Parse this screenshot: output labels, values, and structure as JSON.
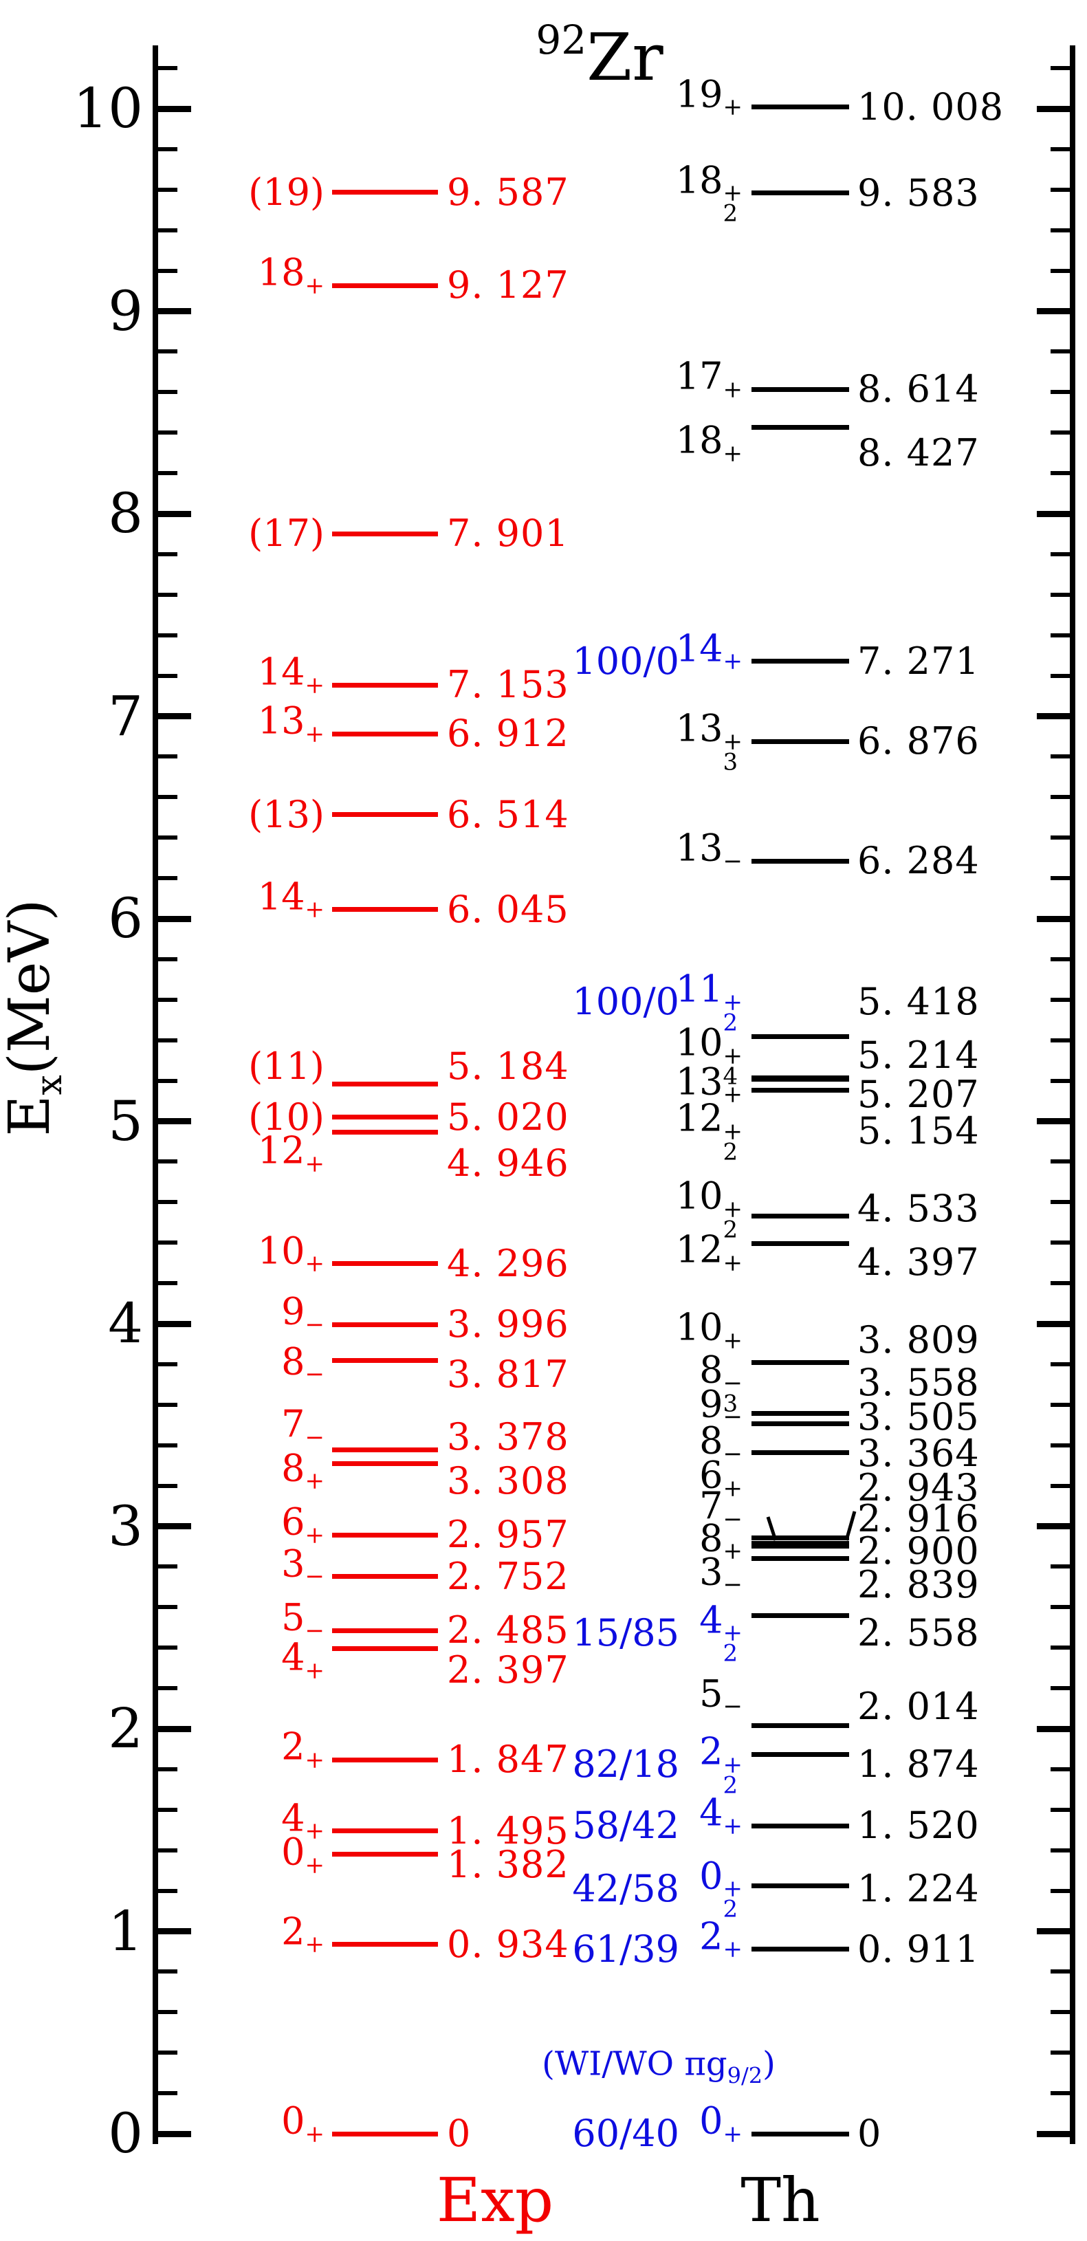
{
  "title": {
    "mass_number": "92",
    "element_symbol": "Zr"
  },
  "y_axis": {
    "symbol": "E",
    "subscript": "x",
    "unit": "(MeV)",
    "min": 0,
    "max": 10,
    "major_step": 1,
    "minor_step": 0.2,
    "major_tick_labels": [
      "0",
      "1",
      "2",
      "3",
      "4",
      "5",
      "6",
      "7",
      "8",
      "9",
      "10"
    ]
  },
  "columns": {
    "exp": {
      "footer_label": "Exp",
      "color": "#f20000"
    },
    "th": {
      "footer_label": "Th",
      "color": "#000000",
      "ratio_color": "#0d0de0",
      "ratio_caption": {
        "pre": "(WI/WO πg",
        "sub": "9/2",
        "post": ")"
      }
    }
  },
  "chart_data": {
    "type": "table",
    "subtype": "nuclear-energy-level-scheme",
    "title": "92Zr",
    "ylabel": "Ex (MeV)",
    "ylim": [
      0,
      10.4
    ],
    "annotation": "(WI/WO πg9/2)",
    "series": [
      {
        "name": "Exp",
        "color": "#f20000",
        "levels": [
          {
            "spin": "(19)",
            "sup": "",
            "sub": "",
            "energy": 9.587,
            "label": "9.587",
            "dy": 0
          },
          {
            "spin": "18",
            "sup": "+",
            "sub": "",
            "energy": 9.127,
            "label": "9.127",
            "dy": 0
          },
          {
            "spin": "(17)",
            "sup": "",
            "sub": "",
            "energy": 7.901,
            "label": "7.901",
            "dy": 0
          },
          {
            "spin": "14",
            "sup": "+",
            "sub": "",
            "energy": 7.153,
            "label": "7.153",
            "dy": 0
          },
          {
            "spin": "13",
            "sup": "+",
            "sub": "",
            "energy": 6.912,
            "label": "6.912",
            "dy": 0
          },
          {
            "spin": "(13)",
            "sup": "",
            "sub": "",
            "energy": 6.514,
            "label": "6.514",
            "dy": 0
          },
          {
            "spin": "14",
            "sup": "+",
            "sub": "",
            "energy": 6.045,
            "label": "6.045",
            "dy": 0
          },
          {
            "spin": "(11)",
            "sup": "",
            "sub": "",
            "energy": 5.184,
            "label": "5.184",
            "dy": -25
          },
          {
            "spin": "(10)",
            "sup": "",
            "sub": "",
            "energy": 5.02,
            "label": "5.020",
            "dy": 0
          },
          {
            "spin": "12",
            "sup": "+",
            "sub": "",
            "energy": 4.946,
            "label": "4.946",
            "dy": 46
          },
          {
            "spin": "10",
            "sup": "+",
            "sub": "",
            "energy": 4.296,
            "label": "4.296",
            "dy": 0
          },
          {
            "spin": "9",
            "sup": "−",
            "sub": "",
            "energy": 3.996,
            "label": "3.996",
            "dy": 0
          },
          {
            "spin": "8",
            "sup": "−",
            "sub": "",
            "energy": 3.817,
            "label": "3.817",
            "dy": 20
          },
          {
            "spin": "7",
            "sup": "−",
            "sub": "",
            "energy": 3.378,
            "label": "3.378",
            "dy": -18
          },
          {
            "spin": "8",
            "sup": "+",
            "sub": "",
            "energy": 3.308,
            "label": "3.308",
            "dy": 25
          },
          {
            "spin": "6",
            "sup": "+",
            "sub": "",
            "energy": 2.957,
            "label": "2.957",
            "dy": 0
          },
          {
            "spin": "3",
            "sup": "−",
            "sub": "",
            "energy": 2.752,
            "label": "2.752",
            "dy": 0
          },
          {
            "spin": "5",
            "sup": "−",
            "sub": "",
            "energy": 2.485,
            "label": "2.485",
            "dy": 0
          },
          {
            "spin": "4",
            "sup": "+",
            "sub": "",
            "energy": 2.397,
            "label": "2.397",
            "dy": 32
          },
          {
            "spin": "2",
            "sup": "+",
            "sub": "",
            "energy": 1.847,
            "label": "1.847",
            "dy": 0
          },
          {
            "spin": "4",
            "sup": "+",
            "sub": "",
            "energy": 1.495,
            "label": "1.495",
            "dy": 0
          },
          {
            "spin": "0",
            "sup": "+",
            "sub": "",
            "energy": 1.382,
            "label": "1.382",
            "dy": 16
          },
          {
            "spin": "2",
            "sup": "+",
            "sub": "",
            "energy": 0.934,
            "label": "0.934",
            "dy": 0
          },
          {
            "spin": "0",
            "sup": "+",
            "sub": "",
            "energy": 0,
            "label": "0",
            "dy": 0
          }
        ]
      },
      {
        "name": "Th",
        "color": "#000000",
        "levels": [
          {
            "ratio": "",
            "spin": "19",
            "sup": "+",
            "sub": "",
            "energy": 10.008,
            "label": "10.008",
            "dy": 0
          },
          {
            "ratio": "",
            "spin": "18",
            "sup": "+",
            "sub": "2",
            "energy": 9.583,
            "label": "9.583",
            "dy": 0
          },
          {
            "ratio": "",
            "spin": "17",
            "sup": "+",
            "sub": "",
            "energy": 8.614,
            "label": "8.614",
            "dy": 0
          },
          {
            "ratio": "",
            "spin": "18",
            "sup": "+",
            "sub": "",
            "energy": 8.427,
            "label": "8.427",
            "dy": 38
          },
          {
            "ratio": "100/0",
            "spin": "14",
            "sup": "+",
            "sub": "",
            "energy": 7.271,
            "label": "7.271",
            "dy": 0
          },
          {
            "ratio": "",
            "spin": "13",
            "sup": "+",
            "sub": "3",
            "energy": 6.876,
            "label": "6.876",
            "dy": 0
          },
          {
            "ratio": "",
            "spin": "13",
            "sup": "−",
            "sub": "",
            "energy": 6.284,
            "label": "6.284",
            "dy": 0
          },
          {
            "ratio": "100/0",
            "spin": "11",
            "sup": "+",
            "sub": "2",
            "energy": 5.418,
            "label": "5.418",
            "dy": -50
          },
          {
            "ratio": "",
            "spin": "10",
            "sup": "+",
            "sub": "4",
            "energy": 5.214,
            "label": "5.214",
            "dy": -32
          },
          {
            "ratio": "",
            "spin": "13",
            "sup": "+",
            "sub": "",
            "energy": 5.207,
            "label": "5.207",
            "dy": 22
          },
          {
            "ratio": "",
            "spin": "12",
            "sup": "+",
            "sub": "2",
            "energy": 5.154,
            "label": "5.154",
            "dy": 60
          },
          {
            "ratio": "",
            "spin": "10",
            "sup": "+",
            "sub": "2",
            "energy": 4.533,
            "label": "4.533",
            "dy": -10
          },
          {
            "ratio": "",
            "spin": "12",
            "sup": "+",
            "sub": "",
            "energy": 4.397,
            "label": "4.397",
            "dy": 28
          },
          {
            "ratio": "",
            "spin": "10",
            "sup": "+",
            "sub": "",
            "energy": 3.809,
            "label": "3.809",
            "dy": -32
          },
          {
            "ratio": "",
            "spin": "8",
            "sup": "−",
            "sub": "3",
            "energy": 3.558,
            "label": "3.558",
            "dy": -44
          },
          {
            "ratio": "",
            "spin": "9",
            "sup": "−",
            "sub": "",
            "energy": 3.505,
            "label": "3.505",
            "dy": -10
          },
          {
            "ratio": "",
            "spin": "8",
            "sup": "−",
            "sub": "",
            "energy": 3.364,
            "label": "3.364",
            "dy": 2
          },
          {
            "ratio": "",
            "spin": "6",
            "sup": "+",
            "sub": "",
            "energy": 2.943,
            "label": "2.943",
            "dy": -72
          },
          {
            "ratio": "",
            "spin": "7",
            "sup": "−",
            "sub": "",
            "energy": 2.916,
            "label": "2.916",
            "dy": -35
          },
          {
            "ratio": "",
            "spin": "8",
            "sup": "+",
            "sub": "",
            "energy": 2.9,
            "label": "2.900",
            "dy": 7
          },
          {
            "ratio": "",
            "spin": "3",
            "sup": "−",
            "sub": "",
            "energy": 2.839,
            "label": "2.839",
            "dy": 38
          },
          {
            "ratio": "15/85",
            "spin": "4",
            "sup": "+",
            "sub": "2",
            "energy": 2.558,
            "label": "2.558",
            "dy": 25
          },
          {
            "ratio": "",
            "spin": "5",
            "sup": "−",
            "sub": "",
            "energy": 2.014,
            "label": "2.014",
            "dy": -28
          },
          {
            "ratio": "82/18",
            "spin": "2",
            "sup": "+",
            "sub": "2",
            "energy": 1.874,
            "label": "1.874",
            "dy": 15
          },
          {
            "ratio": "58/42",
            "spin": "4",
            "sup": "+",
            "sub": "",
            "energy": 1.52,
            "label": "1.520",
            "dy": 0
          },
          {
            "ratio": "42/58",
            "spin": "0",
            "sup": "+",
            "sub": "2",
            "energy": 1.224,
            "label": "1.224",
            "dy": 4
          },
          {
            "ratio": "61/39",
            "spin": "2",
            "sup": "+",
            "sub": "",
            "energy": 0.911,
            "label": "0.911",
            "dy": 0
          },
          {
            "ratio": "60/40",
            "spin": "0",
            "sup": "+",
            "sub": "",
            "energy": 0,
            "label": "0",
            "dy": 0
          }
        ]
      }
    ]
  }
}
